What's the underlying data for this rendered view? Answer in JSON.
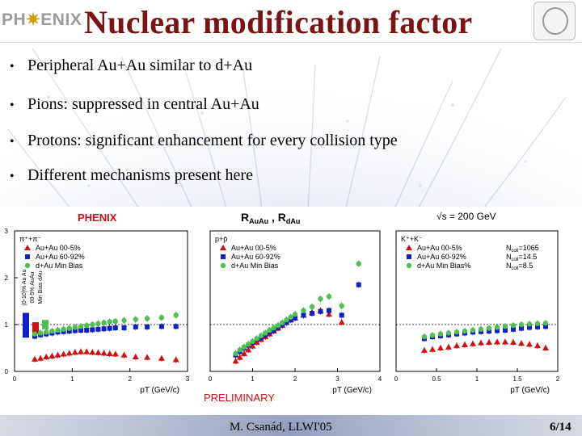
{
  "header": {
    "logo_text_pre": "PH",
    "logo_star": "✷",
    "logo_text_post": "ENIX",
    "title": "Nuclear modification factor",
    "seal_icon": "university-seal-icon"
  },
  "bullets": [
    {
      "text": "Peripheral Au+Au similar to d+Au"
    },
    {
      "text": "Pions: suppressed in central Au+Au"
    },
    {
      "text": "Protons: significant enhancement for every collision type"
    },
    {
      "text": "Different mechanisms present here"
    }
  ],
  "figure": {
    "brand": "PHENIX",
    "center_title": "R",
    "center_title_sub1": "AuAu",
    "center_title_sep": " , R",
    "center_title_sub2": "dAu",
    "energy": "√s = 200 GeV",
    "preliminary": "PRELIMINARY",
    "colors": {
      "central": "#d01010",
      "peripheral": "#1020c8",
      "dau": "#50c050"
    },
    "panels": [
      {
        "id": "pi",
        "label": "π⁺+π⁻",
        "legend": [
          "Au+Au 00-5%",
          "Au+Au 60-92%",
          "d+Au Min Bias"
        ],
        "x_label": "pT (GeV/c)",
        "x_ticks": [
          "0",
          "1",
          "2",
          "3"
        ],
        "y_ticks": [
          "0",
          "1",
          "2",
          "3"
        ],
        "xlim": [
          0,
          3
        ],
        "ylim": [
          0,
          3
        ],
        "side_labels": [
          "(0-10)% Au Au",
          "00-5% AuAu",
          "Min Bias dAu"
        ],
        "series": [
          {
            "name": "Au+Au 00-5%",
            "x": [
              0.35,
              0.45,
              0.55,
              0.65,
              0.75,
              0.85,
              0.95,
              1.05,
              1.15,
              1.25,
              1.35,
              1.45,
              1.55,
              1.65,
              1.75,
              1.9,
              2.1,
              2.3,
              2.55,
              2.8
            ],
            "y": [
              0.26,
              0.28,
              0.31,
              0.33,
              0.35,
              0.37,
              0.39,
              0.41,
              0.42,
              0.42,
              0.41,
              0.4,
              0.39,
              0.38,
              0.37,
              0.35,
              0.31,
              0.3,
              0.28,
              0.25
            ]
          },
          {
            "name": "Au+Au 60-92%",
            "x": [
              0.35,
              0.45,
              0.55,
              0.65,
              0.75,
              0.85,
              0.95,
              1.05,
              1.15,
              1.25,
              1.35,
              1.45,
              1.55,
              1.65,
              1.75,
              1.9,
              2.1,
              2.3,
              2.55,
              2.8
            ],
            "y": [
              0.75,
              0.78,
              0.8,
              0.82,
              0.84,
              0.85,
              0.86,
              0.87,
              0.88,
              0.88,
              0.89,
              0.9,
              0.91,
              0.92,
              0.93,
              0.93,
              0.95,
              0.95,
              0.96,
              0.96
            ]
          },
          {
            "name": "d+Au Min Bias",
            "x": [
              0.35,
              0.45,
              0.55,
              0.65,
              0.75,
              0.85,
              0.95,
              1.05,
              1.15,
              1.25,
              1.35,
              1.45,
              1.55,
              1.65,
              1.75,
              1.9,
              2.1,
              2.3,
              2.55,
              2.8
            ],
            "y": [
              0.8,
              0.82,
              0.84,
              0.86,
              0.88,
              0.9,
              0.92,
              0.94,
              0.96,
              0.98,
              1.0,
              1.02,
              1.04,
              1.06,
              1.07,
              1.09,
              1.11,
              1.13,
              1.15,
              1.2
            ]
          }
        ]
      },
      {
        "id": "p",
        "label": "p+p̄",
        "legend": [
          "Au+Au 00-5%",
          "Au+Au 60-92%",
          "d+Au Min Bias"
        ],
        "x_label": "pT (GeV/c)",
        "x_ticks": [
          "0",
          "1",
          "2",
          "3",
          "4"
        ],
        "xlim": [
          0,
          4
        ],
        "ylim": [
          0,
          3
        ],
        "series": [
          {
            "name": "Au+Au 00-5%",
            "x": [
              0.6,
              0.7,
              0.8,
              0.9,
              1.0,
              1.1,
              1.2,
              1.3,
              1.4,
              1.5,
              1.6,
              1.7,
              1.8,
              1.9,
              2.0,
              2.2,
              2.4,
              2.6,
              2.8,
              3.1
            ],
            "y": [
              0.22,
              0.3,
              0.38,
              0.46,
              0.54,
              0.62,
              0.68,
              0.74,
              0.8,
              0.86,
              0.92,
              0.98,
              1.04,
              1.1,
              1.14,
              1.2,
              1.26,
              1.3,
              1.22,
              1.05
            ]
          },
          {
            "name": "Au+Au 60-92%",
            "x": [
              0.6,
              0.7,
              0.8,
              0.9,
              1.0,
              1.1,
              1.2,
              1.3,
              1.4,
              1.5,
              1.6,
              1.7,
              1.8,
              1.9,
              2.0,
              2.2,
              2.4,
              2.6,
              2.8,
              3.1,
              3.5
            ],
            "y": [
              0.35,
              0.42,
              0.5,
              0.56,
              0.62,
              0.68,
              0.72,
              0.78,
              0.84,
              0.88,
              0.94,
              1.0,
              1.05,
              1.1,
              1.14,
              1.2,
              1.24,
              1.28,
              1.3,
              1.2,
              1.85
            ]
          },
          {
            "name": "d+Au Min Bias",
            "x": [
              0.6,
              0.7,
              0.8,
              0.9,
              1.0,
              1.1,
              1.2,
              1.3,
              1.4,
              1.5,
              1.6,
              1.7,
              1.8,
              1.9,
              2.0,
              2.2,
              2.4,
              2.6,
              2.8,
              3.1,
              3.5
            ],
            "y": [
              0.38,
              0.46,
              0.52,
              0.58,
              0.64,
              0.7,
              0.76,
              0.82,
              0.88,
              0.93,
              0.98,
              1.04,
              1.1,
              1.16,
              1.22,
              1.3,
              1.38,
              1.55,
              1.6,
              1.4,
              2.3
            ]
          }
        ]
      },
      {
        "id": "k",
        "label": "K⁺+K⁻",
        "legend": [
          "Au+Au 00-5%",
          "Au+Au 60-92%",
          "d+Au Min Bias%"
        ],
        "ncoll": [
          "N",
          "coll",
          "=1065",
          "N",
          "coll",
          "=14.5",
          "N",
          "coll",
          "=8.5"
        ],
        "x_label": "pT (GeV/c)",
        "x_ticks": [
          "0",
          "0.5",
          "1",
          "1.5",
          "2"
        ],
        "xlim": [
          0,
          2
        ],
        "ylim": [
          0,
          3
        ],
        "series": [
          {
            "name": "Au+Au 00-5%",
            "x": [
              0.35,
              0.45,
              0.55,
              0.65,
              0.75,
              0.85,
              0.95,
              1.05,
              1.15,
              1.25,
              1.35,
              1.45,
              1.55,
              1.65,
              1.75,
              1.85
            ],
            "y": [
              0.45,
              0.47,
              0.5,
              0.52,
              0.55,
              0.57,
              0.59,
              0.61,
              0.62,
              0.63,
              0.63,
              0.62,
              0.6,
              0.58,
              0.55,
              0.5
            ]
          },
          {
            "name": "Au+Au 60-92%",
            "x": [
              0.35,
              0.45,
              0.55,
              0.65,
              0.75,
              0.85,
              0.95,
              1.05,
              1.15,
              1.25,
              1.35,
              1.45,
              1.55,
              1.65,
              1.75,
              1.85
            ],
            "y": [
              0.7,
              0.74,
              0.76,
              0.78,
              0.8,
              0.82,
              0.84,
              0.85,
              0.86,
              0.87,
              0.88,
              0.9,
              0.92,
              0.94,
              0.95,
              0.96
            ]
          },
          {
            "name": "d+Au Min Bias%",
            "x": [
              0.35,
              0.45,
              0.55,
              0.65,
              0.75,
              0.85,
              0.95,
              1.05,
              1.15,
              1.25,
              1.35,
              1.45,
              1.55,
              1.65,
              1.75,
              1.85
            ],
            "y": [
              0.74,
              0.77,
              0.8,
              0.82,
              0.84,
              0.86,
              0.88,
              0.9,
              0.92,
              0.94,
              0.96,
              0.98,
              1.0,
              1.01,
              1.02,
              1.03
            ]
          }
        ]
      }
    ]
  },
  "footer": {
    "author": "M. Csanád, LLWI'05",
    "page": "6/14"
  }
}
